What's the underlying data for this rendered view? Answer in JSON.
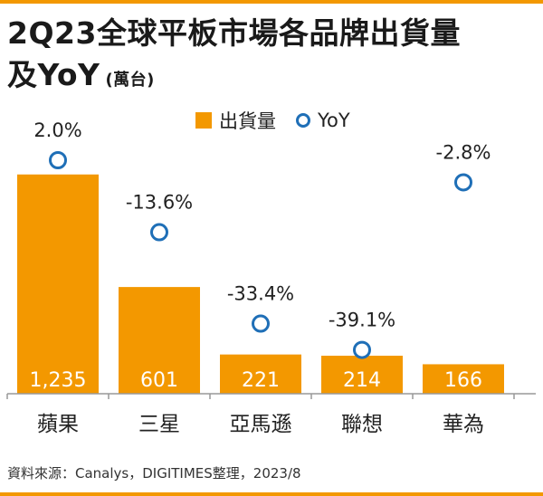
{
  "header": {
    "title_line1": "2Q23全球平板市場各品牌出貨量",
    "title_line2": "及YoY",
    "unit": "(萬台)"
  },
  "legend": {
    "shipments_label": "出貨量",
    "yoy_label": "YoY"
  },
  "source": "資料來源：Canalys，DIGITIMES整理，2023/8",
  "colors": {
    "accent": "#f39800",
    "yoy_marker": "#1f6fb7",
    "axis": "#999999"
  },
  "chart_data": {
    "type": "bar",
    "categories": [
      "蘋果",
      "三星",
      "亞馬遜",
      "聯想",
      "華為"
    ],
    "series": [
      {
        "name": "出貨量",
        "values": [
          1235,
          601,
          221,
          214,
          166
        ],
        "labels": [
          "1,235",
          "601",
          "221",
          "214",
          "166"
        ]
      },
      {
        "name": "YoY",
        "values": [
          2.0,
          -13.6,
          -33.4,
          -39.1,
          -2.8
        ],
        "labels": [
          "2.0%",
          "-13.6%",
          "-33.4%",
          "-39.1%",
          "-2.8%"
        ]
      }
    ],
    "title": "2Q23全球平板市場各品牌出貨量及YoY",
    "unit": "萬台",
    "legend_position": "top"
  }
}
